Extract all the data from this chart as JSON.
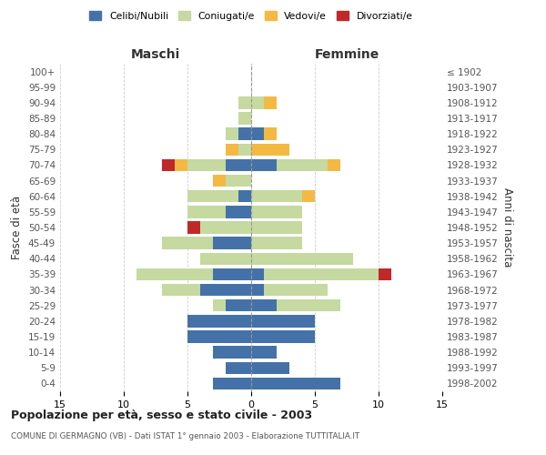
{
  "age_groups": [
    "0-4",
    "5-9",
    "10-14",
    "15-19",
    "20-24",
    "25-29",
    "30-34",
    "35-39",
    "40-44",
    "45-49",
    "50-54",
    "55-59",
    "60-64",
    "65-69",
    "70-74",
    "75-79",
    "80-84",
    "85-89",
    "90-94",
    "95-99",
    "100+"
  ],
  "year_labels": [
    "1998-2002",
    "1993-1997",
    "1988-1992",
    "1983-1987",
    "1978-1982",
    "1973-1977",
    "1968-1972",
    "1963-1967",
    "1958-1962",
    "1953-1957",
    "1948-1952",
    "1943-1947",
    "1938-1942",
    "1933-1937",
    "1928-1932",
    "1923-1927",
    "1918-1922",
    "1913-1917",
    "1908-1912",
    "1903-1907",
    "≤ 1902"
  ],
  "maschi": {
    "celibi": [
      3,
      2,
      3,
      5,
      5,
      2,
      4,
      3,
      0,
      3,
      0,
      2,
      1,
      0,
      2,
      0,
      1,
      0,
      0,
      0,
      0
    ],
    "coniugati": [
      0,
      0,
      0,
      0,
      0,
      1,
      3,
      6,
      4,
      4,
      4,
      3,
      4,
      2,
      3,
      1,
      1,
      1,
      1,
      0,
      0
    ],
    "vedovi": [
      0,
      0,
      0,
      0,
      0,
      0,
      0,
      0,
      0,
      0,
      0,
      0,
      0,
      1,
      1,
      1,
      0,
      0,
      0,
      0,
      0
    ],
    "divorziati": [
      0,
      0,
      0,
      0,
      0,
      0,
      0,
      0,
      0,
      0,
      1,
      0,
      0,
      0,
      1,
      0,
      0,
      0,
      0,
      0,
      0
    ]
  },
  "femmine": {
    "nubili": [
      7,
      3,
      2,
      5,
      5,
      2,
      1,
      1,
      0,
      0,
      0,
      0,
      0,
      0,
      2,
      0,
      1,
      0,
      0,
      0,
      0
    ],
    "coniugate": [
      0,
      0,
      0,
      0,
      0,
      5,
      5,
      9,
      8,
      4,
      4,
      4,
      4,
      0,
      4,
      0,
      0,
      0,
      1,
      0,
      0
    ],
    "vedove": [
      0,
      0,
      0,
      0,
      0,
      0,
      0,
      0,
      0,
      0,
      0,
      0,
      1,
      0,
      1,
      3,
      1,
      0,
      1,
      0,
      0
    ],
    "divorziate": [
      0,
      0,
      0,
      0,
      0,
      0,
      0,
      1,
      0,
      0,
      0,
      0,
      0,
      0,
      0,
      0,
      0,
      0,
      0,
      0,
      0
    ]
  },
  "colors": {
    "celibi_nubili": "#4472a8",
    "coniugati": "#c5d9a0",
    "vedovi": "#f4b942",
    "divorziati": "#c0282a"
  },
  "xlim": 15,
  "title": "Popolazione per età, sesso e stato civile - 2003",
  "subtitle": "COMUNE DI GERMAGNO (VB) - Dati ISTAT 1° gennaio 2003 - Elaborazione TUTTITALIA.IT",
  "xlabel_left": "Maschi",
  "xlabel_right": "Femmine",
  "ylabel_left": "Fasce di età",
  "ylabel_right": "Anni di nascita",
  "background_color": "#ffffff",
  "grid_color": "#cccccc"
}
